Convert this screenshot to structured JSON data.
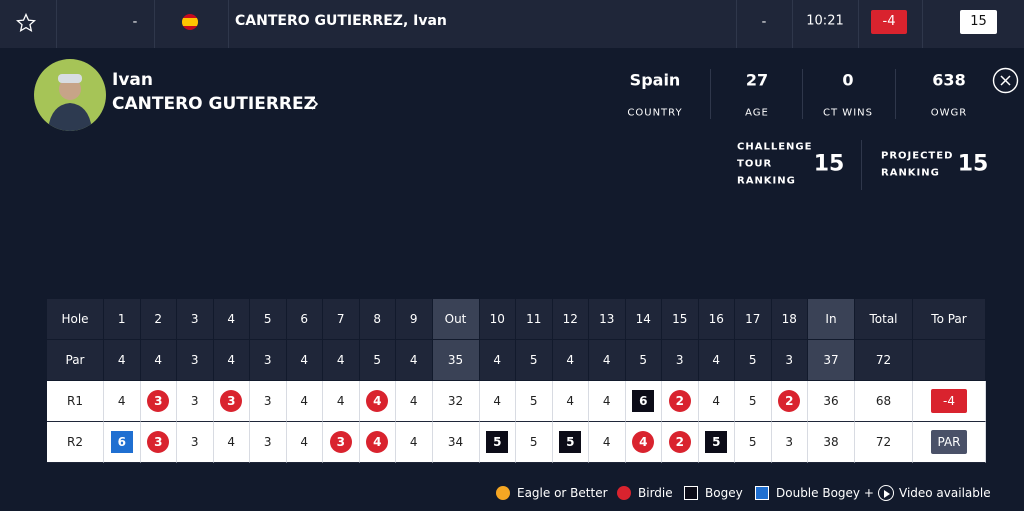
{
  "top_bar": {
    "position": "-",
    "name": "CANTERO GUTIERREZ, Ivan",
    "thru": "-",
    "tee_time": "10:21",
    "score": "-4",
    "rank": "15"
  },
  "profile": {
    "first_name": "Ivan",
    "last_name": "CANTERO GUTIERREZ",
    "stats": [
      {
        "value": "Spain",
        "label": "COUNTRY"
      },
      {
        "value": "27",
        "label": "AGE"
      },
      {
        "value": "0",
        "label": "CT WINS"
      },
      {
        "value": "638",
        "label": "OWGR"
      }
    ],
    "rankings": [
      {
        "label_lines": [
          "CHALLENGE",
          "TOUR",
          "RANKING"
        ],
        "value": "15"
      },
      {
        "label_lines": [
          "PROJECTED",
          "RANKING"
        ],
        "value": "15"
      }
    ]
  },
  "scorecard": {
    "header": [
      "Hole",
      "1",
      "2",
      "3",
      "4",
      "5",
      "6",
      "7",
      "8",
      "9",
      "Out",
      "10",
      "11",
      "12",
      "13",
      "14",
      "15",
      "16",
      "17",
      "18",
      "In",
      "Total",
      "To Par"
    ],
    "par": [
      "Par",
      "4",
      "4",
      "3",
      "4",
      "3",
      "4",
      "4",
      "5",
      "4",
      "35",
      "4",
      "5",
      "4",
      "4",
      "5",
      "3",
      "4",
      "5",
      "3",
      "37",
      "72"
    ],
    "rounds": [
      {
        "cells": [
          "R1",
          "4",
          "3",
          "3",
          "3",
          "3",
          "4",
          "4",
          "4",
          "4",
          "32",
          "4",
          "5",
          "4",
          "4",
          "6",
          "2",
          "4",
          "5",
          "2",
          "36",
          "68",
          "-4"
        ],
        "types": [
          null,
          null,
          "birdie",
          null,
          "birdie",
          null,
          null,
          null,
          "birdie",
          null,
          null,
          null,
          null,
          null,
          null,
          "bogey",
          "birdie",
          null,
          null,
          "birdie",
          null,
          null,
          "under"
        ]
      },
      {
        "cells": [
          "R2",
          "6",
          "3",
          "3",
          "4",
          "3",
          "4",
          "3",
          "4",
          "4",
          "34",
          "5",
          "5",
          "5",
          "4",
          "4",
          "2",
          "5",
          "5",
          "3",
          "38",
          "72",
          "PAR"
        ],
        "types": [
          null,
          "double",
          "birdie",
          null,
          null,
          null,
          null,
          "birdie",
          "birdie",
          null,
          null,
          "bogey",
          null,
          "bogey",
          null,
          "birdie",
          "birdie",
          "bogey",
          null,
          null,
          null,
          null,
          "even"
        ]
      }
    ]
  },
  "legend": [
    {
      "label": "Eagle or Better",
      "shape": "circle",
      "color": "#f5a623"
    },
    {
      "label": "Birdie",
      "shape": "circle",
      "color": "#d9232e"
    },
    {
      "label": "Bogey",
      "shape": "square",
      "color": "#0c0c18"
    },
    {
      "label": "Double Bogey +",
      "shape": "square",
      "color": "#1f6fd1"
    },
    {
      "label": "Video available",
      "shape": "play",
      "color": "#ffffff"
    }
  ]
}
